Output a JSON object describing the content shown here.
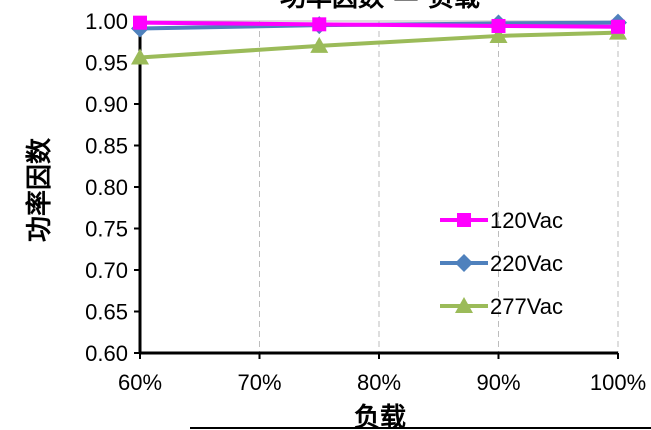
{
  "chart_data": {
    "type": "line",
    "title": "功率因数 — 负载",
    "xlabel": "负载",
    "ylabel": "功率因数",
    "x": [
      60,
      75,
      90,
      100
    ],
    "x_ticks": [
      60,
      70,
      80,
      90,
      100
    ],
    "x_tick_labels": [
      "60%",
      "70%",
      "80%",
      "90%",
      "100%"
    ],
    "xlim": [
      60,
      100
    ],
    "ylim": [
      0.6,
      1.0
    ],
    "y_ticks": [
      0.6,
      0.65,
      0.7,
      0.75,
      0.8,
      0.85,
      0.9,
      0.95,
      1.0
    ],
    "y_tick_labels": [
      "0.60",
      "0.65",
      "0.70",
      "0.75",
      "0.80",
      "0.85",
      "0.90",
      "0.95",
      "1.00"
    ],
    "grid": "vertical-dashed",
    "legend_position": "bottom-right",
    "series": [
      {
        "name": "120Vac",
        "color": "#ff00ff",
        "marker": "square",
        "values": [
          0.998,
          0.996,
          0.994,
          0.993
        ]
      },
      {
        "name": "220Vac",
        "color": "#4f81bd",
        "marker": "diamond",
        "values": [
          0.991,
          0.995,
          0.997,
          0.998
        ]
      },
      {
        "name": "277Vac",
        "color": "#9bbb59",
        "marker": "triangle",
        "values": [
          0.956,
          0.97,
          0.982,
          0.986
        ]
      }
    ]
  }
}
